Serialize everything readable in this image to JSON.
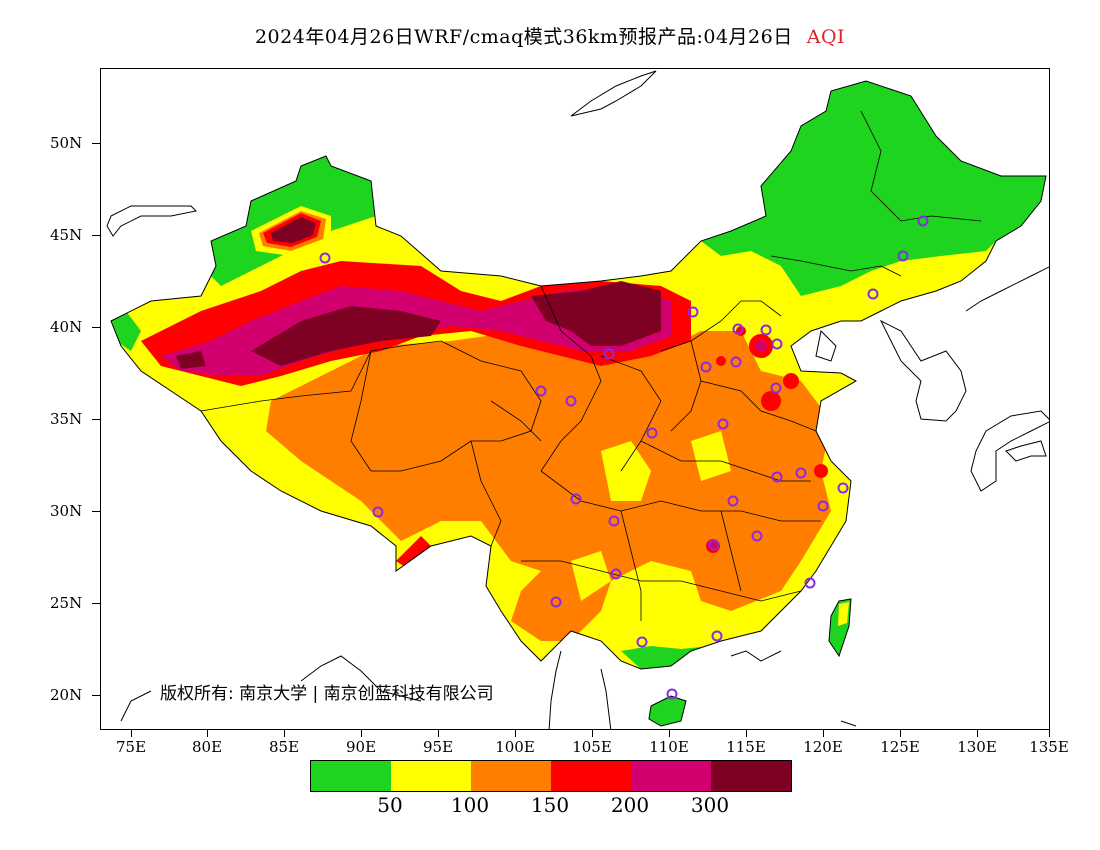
{
  "title": {
    "main": "2024年04月26日WRF/cmaq模式36km预报产品:04月26日",
    "variable": "AQI",
    "variable_color": "#e0212b"
  },
  "lat_axis": [
    "50N",
    "45N",
    "40N",
    "35N",
    "30N",
    "25N",
    "20N"
  ],
  "lon_axis": [
    "75E",
    "80E",
    "85E",
    "90E",
    "95E",
    "100E",
    "105E",
    "110E",
    "115E",
    "120E",
    "125E",
    "130E",
    "135E"
  ],
  "copyright": "版权所有: 南京大学 | 南京创蓝科技有限公司",
  "legend": {
    "colors": [
      "#1ed41e",
      "#ffff00",
      "#ff7e00",
      "#ff0000",
      "#d2006e",
      "#7e0023"
    ],
    "labels": [
      "50",
      "100",
      "150",
      "200",
      "300"
    ]
  },
  "stations_color": "#8a2be2"
}
